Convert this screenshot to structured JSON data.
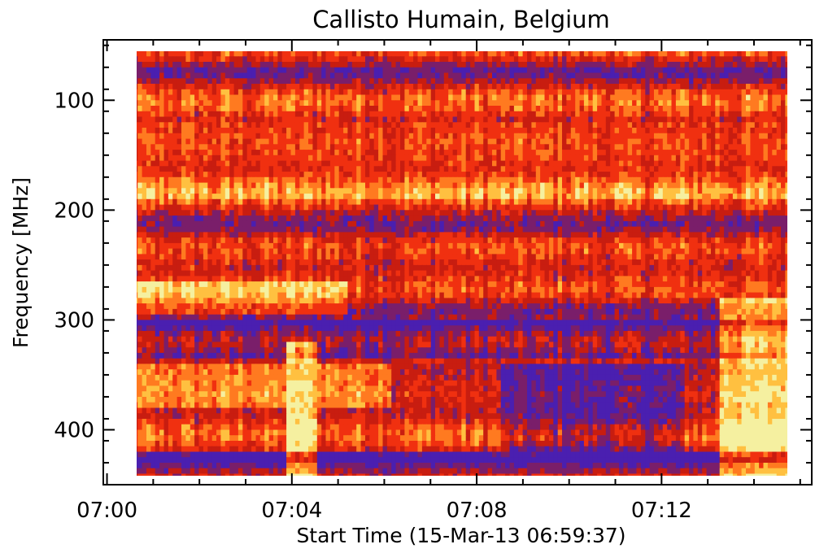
{
  "chart_data": {
    "type": "heatmap",
    "title": "Callisto Humain, Belgium",
    "xlabel": "Start Time (15-Mar-13 06:59:37)",
    "ylabel": "Frequency [MHz]",
    "x_ticks": [
      {
        "label": "07:00",
        "minutes": 0
      },
      {
        "label": "07:04",
        "minutes": 4
      },
      {
        "label": "07:08",
        "minutes": 8
      },
      {
        "label": "07:12",
        "minutes": 12
      }
    ],
    "y_ticks": [
      100,
      200,
      300,
      400
    ],
    "xlim_minutes": [
      -0.08,
      15.25
    ],
    "data_x_range_minutes": [
      0,
      15.15
    ],
    "ylim_mhz": [
      450,
      45
    ],
    "data_y_range_mhz": [
      45,
      445
    ],
    "y_axis_inverted": true,
    "colormap": [
      "#4a1fb0",
      "#7a1e6a",
      "#c81d10",
      "#f03010",
      "#ff7a20",
      "#ffc040",
      "#f5f0a0"
    ],
    "features": [
      {
        "kind": "broadband emission band",
        "freq_mhz": [
          340,
          380
        ],
        "time_minutes": [
          0,
          6.2
        ]
      },
      {
        "kind": "bright burst",
        "freq_mhz": [
          320,
          445
        ],
        "time_minutes": [
          3.9,
          4.5
        ]
      },
      {
        "kind": "bright burst",
        "freq_mhz": [
          280,
          445
        ],
        "time_minutes": [
          13.3,
          15.15
        ]
      },
      {
        "kind": "emission band",
        "freq_mhz": [
          265,
          295
        ],
        "time_minutes": [
          0,
          5.2
        ]
      },
      {
        "kind": "interference lines",
        "freq_mhz": [
          120,
          190
        ],
        "time_minutes": [
          0,
          15.15
        ]
      }
    ]
  }
}
